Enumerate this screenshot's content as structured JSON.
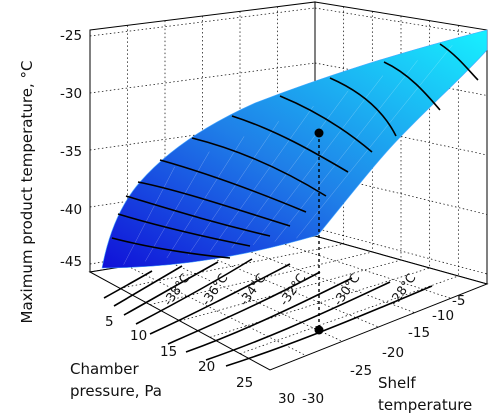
{
  "chart_data": {
    "type": "surface",
    "zlabel": "Maximum product temperature, °C",
    "xlabel": "Chamber pressure, Pa",
    "ylabel": "Shelf temperature",
    "x": [
      5,
      10,
      15,
      20,
      25,
      30
    ],
    "y": [
      -30,
      -25,
      -20,
      -15,
      -10,
      -5
    ],
    "zlim": [
      -45,
      -25
    ],
    "z_ticks": [
      "-25",
      "-30",
      "-35",
      "-40",
      "-45"
    ],
    "x_ticks": [
      "5",
      "10",
      "15",
      "20",
      "25",
      "30"
    ],
    "y_ticks": [
      "-5",
      "-10",
      "-15",
      "-20",
      "-25",
      "-30"
    ],
    "contour_labels": [
      "-38°C",
      "-36°C",
      "-34°C",
      "-32°C",
      "-30°C",
      "-28°C"
    ],
    "colormap": [
      "#0000e0",
      "#00ffff"
    ],
    "marked_point": {
      "pressure": 17,
      "shelf": -22,
      "temperature": -32
    },
    "grid": true
  }
}
